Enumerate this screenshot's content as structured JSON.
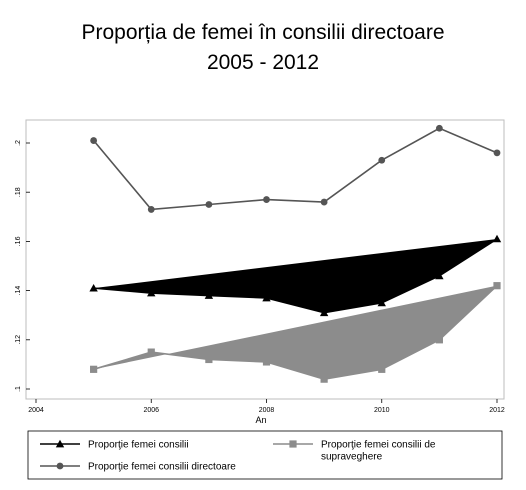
{
  "chart_data": {
    "type": "line",
    "title": "Proporția de femei în consilii directoare",
    "subtitle": "2005 - 2012",
    "xlabel": "An",
    "ylabel": "",
    "xlim": [
      2004,
      2012
    ],
    "ylim": [
      0.1,
      0.2
    ],
    "xticks": [
      "2004",
      "2006",
      "2008",
      "2010",
      "2012"
    ],
    "yticks": [
      ".1",
      ".12",
      ".14",
      ".16",
      ".18",
      ".2"
    ],
    "x": [
      2005,
      2006,
      2007,
      2008,
      2009,
      2010,
      2011,
      2012
    ],
    "series": [
      {
        "name": "Proporţie femei consilii",
        "values": [
          0.141,
          0.139,
          0.138,
          0.137,
          0.131,
          0.135,
          0.146,
          0.161
        ],
        "marker": "triangle",
        "color": "#000000",
        "fill": "#000000"
      },
      {
        "name": "Proporţie femei consilii directoare",
        "values": [
          0.201,
          0.173,
          0.175,
          0.177,
          0.176,
          0.193,
          0.206,
          0.196
        ],
        "marker": "circle",
        "color": "#555555",
        "fill": "none"
      },
      {
        "name": "Proporţie femei consilii de supraveghere",
        "values": [
          0.108,
          0.115,
          0.112,
          0.111,
          0.104,
          0.108,
          0.12,
          0.142
        ],
        "marker": "square",
        "color": "#8c8c8c",
        "fill": "#8c8c8c"
      }
    ],
    "legend_position": "bottom",
    "grid": false
  }
}
